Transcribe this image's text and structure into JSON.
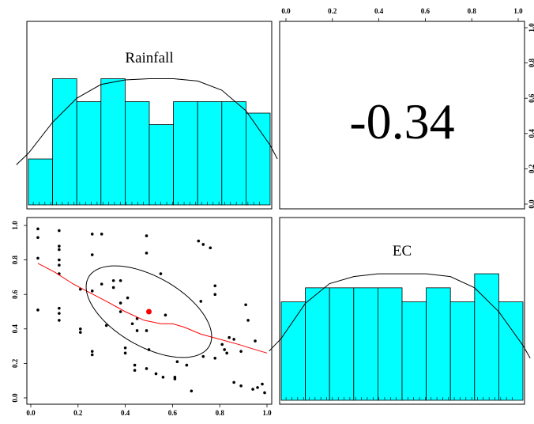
{
  "chart_data": {
    "type": "scatter",
    "variables": [
      "Rainfall",
      "EC"
    ],
    "correlation_label": "-0.34",
    "axis_ticks": [
      "0.0",
      "0.2",
      "0.4",
      "0.6",
      "0.8",
      "1.0"
    ],
    "colors": {
      "bar_fill": "#00ffff",
      "scatter_points": "#000000",
      "mean_point": "#ff0000",
      "smooth_line": "#ff0000",
      "ellipse": "#000000"
    },
    "histograms": [
      {
        "variable": "Rainfall",
        "bin_edges": [
          0.0,
          0.1,
          0.2,
          0.3,
          0.4,
          0.5,
          0.6,
          0.7,
          0.8,
          0.9,
          1.0
        ],
        "counts": [
          4,
          11,
          9,
          11,
          9,
          7,
          9,
          9,
          9,
          8
        ],
        "density_curve": [
          [
            -0.05,
            3.5
          ],
          [
            0.0,
            4.5
          ],
          [
            0.1,
            7.2
          ],
          [
            0.2,
            9.3
          ],
          [
            0.3,
            10.5
          ],
          [
            0.4,
            10.9
          ],
          [
            0.5,
            11.0
          ],
          [
            0.6,
            11.0
          ],
          [
            0.7,
            10.8
          ],
          [
            0.8,
            10.0
          ],
          [
            0.9,
            8.2
          ],
          [
            1.0,
            5.2
          ],
          [
            1.03,
            4.0
          ]
        ]
      },
      {
        "variable": "EC",
        "bin_edges": [
          0.0,
          0.1,
          0.2,
          0.3,
          0.4,
          0.5,
          0.6,
          0.7,
          0.8,
          0.9,
          1.0
        ],
        "counts": [
          7,
          8,
          8,
          8,
          8,
          7,
          8,
          7,
          9,
          7
        ],
        "density_curve": [
          [
            -0.05,
            3.5
          ],
          [
            0.0,
            4.4
          ],
          [
            0.1,
            6.9
          ],
          [
            0.2,
            8.3
          ],
          [
            0.3,
            8.8
          ],
          [
            0.4,
            9.0
          ],
          [
            0.5,
            9.0
          ],
          [
            0.6,
            9.0
          ],
          [
            0.7,
            8.8
          ],
          [
            0.8,
            8.0
          ],
          [
            0.9,
            6.3
          ],
          [
            1.0,
            3.9
          ],
          [
            1.03,
            3.0
          ]
        ]
      }
    ],
    "scatter": {
      "xlabel": "",
      "ylabel": "",
      "xlim": [
        0.0,
        1.0
      ],
      "ylim": [
        0.0,
        1.0
      ],
      "mean_point": [
        0.5,
        0.5
      ],
      "points": [
        [
          0.03,
          0.98
        ],
        [
          0.03,
          0.93
        ],
        [
          0.03,
          0.81
        ],
        [
          0.03,
          0.51
        ],
        [
          0.12,
          0.97
        ],
        [
          0.12,
          0.88
        ],
        [
          0.12,
          0.86
        ],
        [
          0.12,
          0.8
        ],
        [
          0.12,
          0.77
        ],
        [
          0.12,
          0.72
        ],
        [
          0.12,
          0.52
        ],
        [
          0.12,
          0.49
        ],
        [
          0.12,
          0.45
        ],
        [
          0.21,
          0.63
        ],
        [
          0.21,
          0.4
        ],
        [
          0.21,
          0.38
        ],
        [
          0.26,
          0.95
        ],
        [
          0.26,
          0.83
        ],
        [
          0.26,
          0.62
        ],
        [
          0.26,
          0.27
        ],
        [
          0.26,
          0.25
        ],
        [
          0.3,
          0.95
        ],
        [
          0.3,
          0.66
        ],
        [
          0.32,
          0.42
        ],
        [
          0.35,
          0.68
        ],
        [
          0.35,
          0.64
        ],
        [
          0.38,
          0.68
        ],
        [
          0.38,
          0.55
        ],
        [
          0.38,
          0.5
        ],
        [
          0.41,
          0.58
        ],
        [
          0.4,
          0.29
        ],
        [
          0.4,
          0.26
        ],
        [
          0.43,
          0.43
        ],
        [
          0.45,
          0.46
        ],
        [
          0.45,
          0.39
        ],
        [
          0.44,
          0.19
        ],
        [
          0.44,
          0.16
        ],
        [
          0.49,
          0.94
        ],
        [
          0.49,
          0.84
        ],
        [
          0.49,
          0.39
        ],
        [
          0.49,
          0.17
        ],
        [
          0.5,
          0.28
        ],
        [
          0.53,
          0.14
        ],
        [
          0.55,
          0.72
        ],
        [
          0.57,
          0.48
        ],
        [
          0.56,
          0.12
        ],
        [
          0.61,
          0.12
        ],
        [
          0.61,
          0.11
        ],
        [
          0.62,
          0.21
        ],
        [
          0.66,
          0.19
        ],
        [
          0.68,
          0.04
        ],
        [
          0.71,
          0.91
        ],
        [
          0.73,
          0.89
        ],
        [
          0.72,
          0.56
        ],
        [
          0.73,
          0.24
        ],
        [
          0.76,
          0.87
        ],
        [
          0.78,
          0.65
        ],
        [
          0.78,
          0.6
        ],
        [
          0.78,
          0.23
        ],
        [
          0.81,
          0.31
        ],
        [
          0.82,
          0.28
        ],
        [
          0.83,
          0.26
        ],
        [
          0.84,
          0.35
        ],
        [
          0.86,
          0.09
        ],
        [
          0.86,
          0.34
        ],
        [
          0.89,
          0.27
        ],
        [
          0.89,
          0.07
        ],
        [
          0.91,
          0.54
        ],
        [
          0.92,
          0.45
        ],
        [
          0.94,
          0.05
        ],
        [
          0.95,
          0.33
        ],
        [
          0.96,
          0.06
        ],
        [
          0.98,
          0.08
        ],
        [
          0.99,
          0.03
        ]
      ],
      "smooth_line": [
        [
          0.03,
          0.78
        ],
        [
          0.1,
          0.73
        ],
        [
          0.18,
          0.66
        ],
        [
          0.25,
          0.61
        ],
        [
          0.32,
          0.56
        ],
        [
          0.4,
          0.5
        ],
        [
          0.48,
          0.45
        ],
        [
          0.55,
          0.43
        ],
        [
          0.6,
          0.43
        ],
        [
          0.65,
          0.41
        ],
        [
          0.72,
          0.37
        ],
        [
          0.8,
          0.34
        ],
        [
          0.88,
          0.31
        ],
        [
          0.95,
          0.28
        ],
        [
          1.0,
          0.26
        ]
      ],
      "ellipse": {
        "center": [
          0.5,
          0.5
        ],
        "semi_axis_major": 0.33,
        "semi_axis_minor": 0.18,
        "angle_deg": -45
      }
    }
  }
}
